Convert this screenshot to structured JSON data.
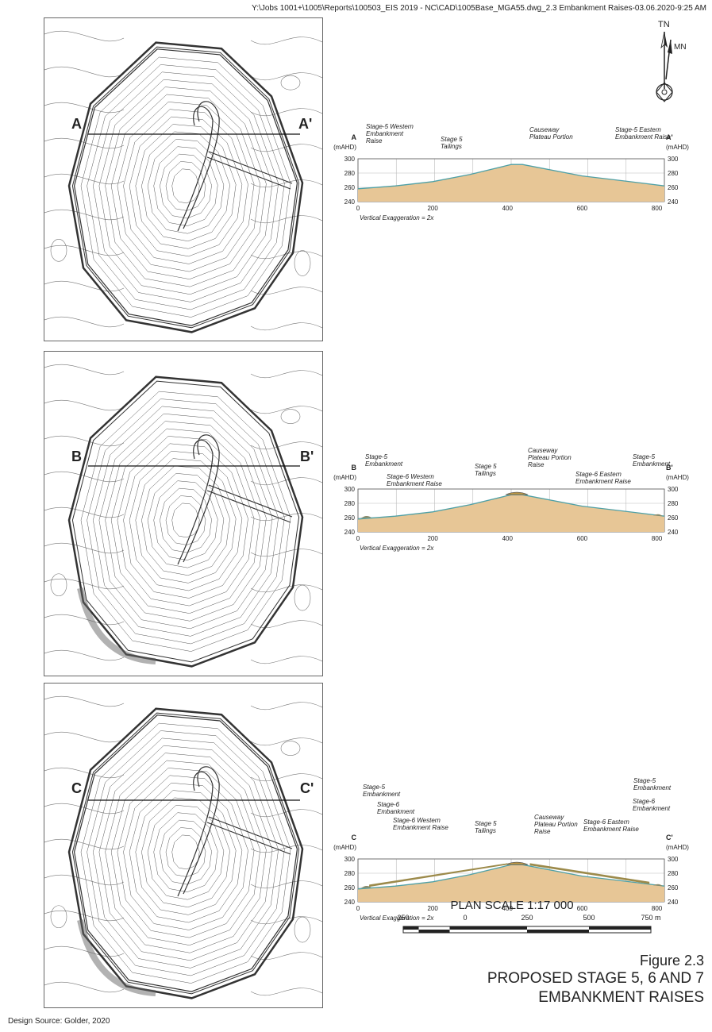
{
  "header": {
    "file_path": "Y:\\Jobs 1001+\\1005\\Reports\\100503_EIS 2019 - NC\\CAD\\1005Base_MGA55.dwg_2.3 Embankment Raises-03.06.2020-9:25 AM"
  },
  "north_arrow": {
    "tn": "TN",
    "mn": "MN"
  },
  "sections": [
    {
      "id": "A",
      "start_label": "A",
      "end_label": "A'",
      "units_left": "(mAHD)",
      "units_right": "(mAHD)",
      "y_ticks": [
        "300",
        "280",
        "260",
        "240"
      ],
      "x_ticks": [
        "0",
        "200",
        "400",
        "600",
        "800"
      ],
      "exaggeration": "Vertical Exaggeration = 2x",
      "labels": [
        {
          "lines": [
            "Stage-5 Western",
            "Embankment",
            "Raise"
          ]
        },
        {
          "lines": [
            "Stage 5",
            "Tailings"
          ]
        },
        {
          "lines": [
            "Causeway",
            "Plateau Portion"
          ]
        },
        {
          "lines": [
            "Stage-5 Eastern",
            "Embankment Raise"
          ]
        }
      ]
    },
    {
      "id": "B",
      "start_label": "B",
      "end_label": "B'",
      "units_left": "(mAHD)",
      "units_right": "(mAHD)",
      "y_ticks": [
        "300",
        "280",
        "260",
        "240"
      ],
      "x_ticks": [
        "0",
        "200",
        "400",
        "600",
        "800"
      ],
      "exaggeration": "Vertical Exaggeration = 2x",
      "labels": [
        {
          "lines": [
            "Stage-5",
            "Embankment"
          ]
        },
        {
          "lines": [
            "Stage-6 Western",
            "Embankment Raise"
          ]
        },
        {
          "lines": [
            "Stage 5",
            "Tailings"
          ]
        },
        {
          "lines": [
            "Causeway",
            "Plateau Portion",
            "Raise"
          ]
        },
        {
          "lines": [
            "Stage-6 Eastern",
            "Embankment Raise"
          ]
        },
        {
          "lines": [
            "Stage-5",
            "Embankment"
          ]
        }
      ]
    },
    {
      "id": "C",
      "start_label": "C",
      "end_label": "C'",
      "units_left": "(mAHD)",
      "units_right": "(mAHD)",
      "y_ticks": [
        "300",
        "280",
        "260",
        "240"
      ],
      "x_ticks": [
        "0",
        "200",
        "400",
        "600",
        "800"
      ],
      "exaggeration": "Vertical Exaggeration = 2x",
      "labels": [
        {
          "lines": [
            "Stage-5",
            "Embankment"
          ]
        },
        {
          "lines": [
            "Stage-6",
            "Embankment"
          ]
        },
        {
          "lines": [
            "Stage-6 Western",
            "Embankment Raise"
          ]
        },
        {
          "lines": [
            "Stage 5",
            "Tailings"
          ]
        },
        {
          "lines": [
            "Causeway",
            "Plateau Portion",
            "Raise"
          ]
        },
        {
          "lines": [
            "Stage-5",
            "Embankment"
          ]
        },
        {
          "lines": [
            "Stage-6",
            "Embankment"
          ]
        },
        {
          "lines": [
            "Stage-6 Eastern",
            "Embankment Raise"
          ]
        }
      ]
    }
  ],
  "scale": {
    "title": "PLAN SCALE 1:17 000",
    "ticks": [
      "250",
      "0",
      "250",
      "500",
      "750 m"
    ]
  },
  "figure": {
    "number": "Figure 2.3",
    "title_line1": "PROPOSED STAGE 5, 6 AND 7",
    "title_line2": "EMBANKMENT RAISES"
  },
  "design_source": "Design Source: Golder, 2020",
  "colors": {
    "fill": "#e7c696",
    "water": "#4ea0a6",
    "raise": "#b99546",
    "line": "#222222"
  }
}
